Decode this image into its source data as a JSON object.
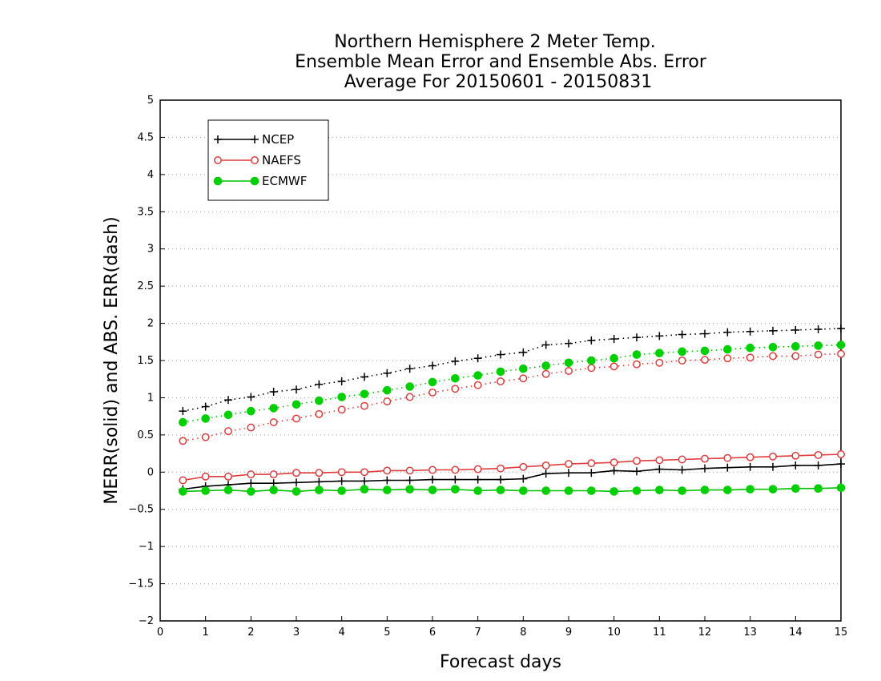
{
  "chart_data": {
    "type": "line",
    "title": [
      "Northern Hemisphere 2 Meter Temp.",
      "Ensemble Mean Error and Ensemble Abs. Error",
      "Average For 20150601 - 20150831"
    ],
    "xlabel": "Forecast days",
    "ylabel": "MERR(solid) and ABS. ERR(dash)",
    "xlim": [
      0,
      15
    ],
    "ylim": [
      -2,
      5
    ],
    "xticks": [
      0,
      1,
      2,
      3,
      4,
      5,
      6,
      7,
      8,
      9,
      10,
      11,
      12,
      13,
      14,
      15
    ],
    "yticks": [
      -2,
      -1.5,
      -1,
      -0.5,
      0,
      0.5,
      1,
      1.5,
      2,
      2.5,
      3,
      3.5,
      4,
      4.5,
      5
    ],
    "ytick_labels": [
      "−2",
      "−1.5",
      "−1",
      "−0.5",
      "0",
      "0.5",
      "1",
      "1.5",
      "2",
      "2.5",
      "3",
      "3.5",
      "4",
      "4.5",
      "5"
    ],
    "grid": "horizontal dotted",
    "legend_position": "top-left",
    "x": [
      0.5,
      1.0,
      1.5,
      2.0,
      2.5,
      3.0,
      3.5,
      4.0,
      4.5,
      5.0,
      5.5,
      6.0,
      6.5,
      7.0,
      7.5,
      8.0,
      8.5,
      9.0,
      9.5,
      10.0,
      10.5,
      11.0,
      11.5,
      12.0,
      12.5,
      13.0,
      13.5,
      14.0,
      14.5,
      15.0
    ],
    "series": [
      {
        "name": "NCEP",
        "color": "#000000",
        "marker": "plus",
        "mean_error": [
          -0.23,
          -0.19,
          -0.17,
          -0.15,
          -0.15,
          -0.14,
          -0.13,
          -0.12,
          -0.12,
          -0.11,
          -0.11,
          -0.1,
          -0.1,
          -0.1,
          -0.1,
          -0.09,
          -0.02,
          -0.01,
          -0.01,
          0.02,
          0.01,
          0.04,
          0.03,
          0.05,
          0.06,
          0.07,
          0.07,
          0.09,
          0.09,
          0.11
        ],
        "abs_error": [
          0.82,
          0.88,
          0.97,
          1.01,
          1.08,
          1.11,
          1.18,
          1.22,
          1.28,
          1.33,
          1.39,
          1.43,
          1.49,
          1.53,
          1.58,
          1.61,
          1.71,
          1.73,
          1.77,
          1.79,
          1.81,
          1.83,
          1.85,
          1.86,
          1.88,
          1.89,
          1.9,
          1.91,
          1.92,
          1.93
        ]
      },
      {
        "name": "NAEFS",
        "color": "#e03c3c",
        "marker": "open-circle",
        "mean_error": [
          -0.11,
          -0.06,
          -0.06,
          -0.03,
          -0.03,
          -0.01,
          -0.01,
          0.0,
          0.0,
          0.02,
          0.02,
          0.03,
          0.03,
          0.04,
          0.05,
          0.07,
          0.09,
          0.11,
          0.12,
          0.13,
          0.15,
          0.16,
          0.17,
          0.18,
          0.19,
          0.2,
          0.21,
          0.22,
          0.23,
          0.24
        ],
        "abs_error": [
          0.42,
          0.47,
          0.55,
          0.6,
          0.67,
          0.72,
          0.78,
          0.84,
          0.89,
          0.95,
          1.01,
          1.07,
          1.12,
          1.17,
          1.22,
          1.26,
          1.32,
          1.36,
          1.4,
          1.42,
          1.45,
          1.47,
          1.5,
          1.51,
          1.53,
          1.54,
          1.56,
          1.56,
          1.58,
          1.59
        ]
      },
      {
        "name": "ECMWF",
        "color": "#00d000",
        "marker": "filled-circle",
        "mean_error": [
          -0.26,
          -0.25,
          -0.24,
          -0.26,
          -0.24,
          -0.26,
          -0.24,
          -0.25,
          -0.23,
          -0.24,
          -0.23,
          -0.24,
          -0.23,
          -0.25,
          -0.24,
          -0.25,
          -0.25,
          -0.25,
          -0.25,
          -0.26,
          -0.25,
          -0.24,
          -0.25,
          -0.24,
          -0.24,
          -0.23,
          -0.23,
          -0.22,
          -0.22,
          -0.21
        ],
        "abs_error": [
          0.67,
          0.72,
          0.77,
          0.82,
          0.86,
          0.91,
          0.96,
          1.01,
          1.05,
          1.1,
          1.15,
          1.21,
          1.26,
          1.3,
          1.35,
          1.39,
          1.43,
          1.47,
          1.5,
          1.53,
          1.58,
          1.6,
          1.62,
          1.63,
          1.65,
          1.67,
          1.68,
          1.69,
          1.7,
          1.71
        ]
      }
    ]
  }
}
